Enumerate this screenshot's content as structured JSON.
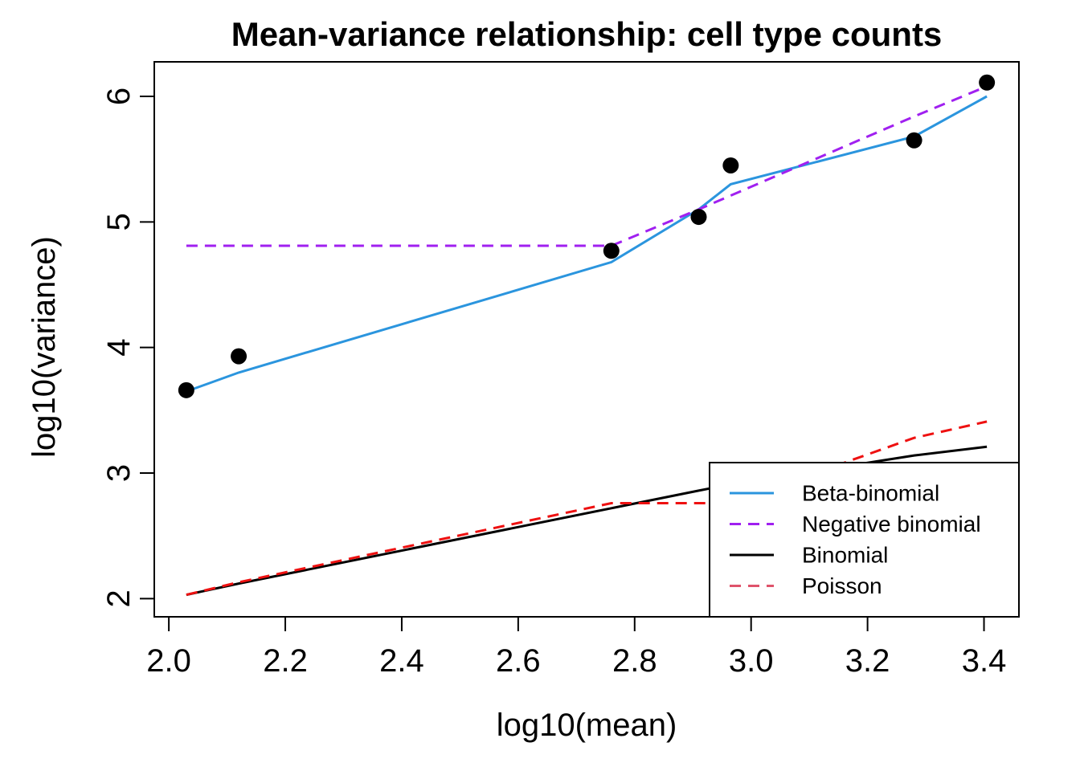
{
  "chart_data": {
    "type": "line",
    "title": "Mean-variance relationship: cell type counts",
    "xlabel": "log10(mean)",
    "ylabel": "log10(variance)",
    "xlim": [
      1.975,
      3.46
    ],
    "ylim": [
      1.855,
      6.275
    ],
    "xticks": [
      2.0,
      2.2,
      2.4,
      2.6,
      2.8,
      3.0,
      3.2,
      3.4
    ],
    "xtick_labels": [
      "2.0",
      "2.2",
      "2.4",
      "2.6",
      "2.8",
      "3.0",
      "3.2",
      "3.4"
    ],
    "yticks": [
      2,
      3,
      4,
      5,
      6
    ],
    "ytick_labels": [
      "2",
      "3",
      "4",
      "5",
      "6"
    ],
    "grid": false,
    "legend_position": "bottom-right",
    "points": {
      "name": "observed",
      "color": "#000000",
      "x": [
        2.03,
        2.12,
        2.76,
        2.91,
        2.965,
        3.28,
        3.405
      ],
      "y": [
        3.66,
        3.93,
        4.77,
        5.04,
        5.45,
        5.65,
        6.11
      ]
    },
    "series": [
      {
        "name": "Beta-binomial",
        "color": "#2b95de",
        "dash": "solid",
        "x": [
          2.03,
          2.12,
          2.76,
          2.91,
          2.965,
          3.28,
          3.405
        ],
        "y": [
          3.65,
          3.8,
          4.68,
          5.1,
          5.3,
          5.68,
          6.0
        ]
      },
      {
        "name": "Negative binomial",
        "color": "#a020f0",
        "dash": "dashed",
        "x": [
          2.03,
          2.12,
          2.76,
          2.91,
          2.965,
          3.28,
          3.405
        ],
        "y": [
          4.81,
          4.81,
          4.81,
          5.1,
          5.21,
          5.84,
          6.08
        ]
      },
      {
        "name": "Binomial",
        "color": "#000000",
        "dash": "solid",
        "x": [
          2.03,
          2.12,
          2.76,
          2.91,
          2.965,
          3.28,
          3.405
        ],
        "y": [
          2.03,
          2.12,
          2.72,
          2.86,
          2.91,
          3.14,
          3.21
        ]
      },
      {
        "name": "Poisson",
        "color": "#ee1111",
        "legend_color": "#df536b",
        "dash": "dashed",
        "x": [
          2.03,
          2.12,
          2.76,
          2.91,
          2.965,
          3.28,
          3.405
        ],
        "y": [
          2.03,
          2.13,
          2.76,
          2.76,
          2.76,
          3.28,
          3.41
        ]
      }
    ],
    "legend": [
      {
        "label": "Beta-binomial",
        "color": "#2b95de",
        "dash": "solid"
      },
      {
        "label": "Negative binomial",
        "color": "#a020f0",
        "dash": "dashed"
      },
      {
        "label": "Binomial",
        "color": "#000000",
        "dash": "solid"
      },
      {
        "label": "Poisson",
        "color": "#df536b",
        "dash": "dashed"
      }
    ]
  }
}
